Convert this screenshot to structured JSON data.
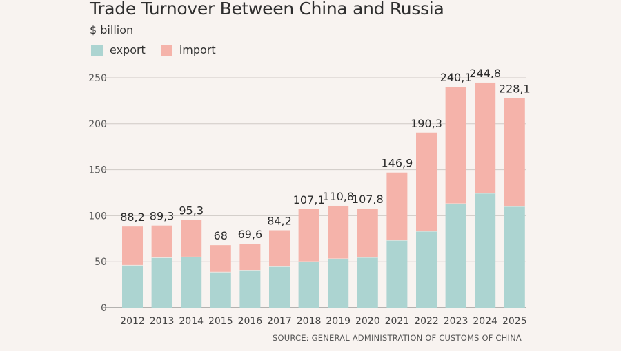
{
  "chart_data": {
    "type": "bar",
    "stacked": true,
    "title": "Trade Turnover Between China and Russia",
    "subtitle": "$ billion",
    "xlabel": "",
    "ylabel": "$ billion",
    "ylim": [
      0,
      250
    ],
    "yticks": [
      0,
      50,
      100,
      150,
      200,
      250
    ],
    "grid": true,
    "legend_position": "top-left",
    "categories": [
      "2012",
      "2013",
      "2014",
      "2015",
      "2016",
      "2017",
      "2018",
      "2019",
      "2020",
      "2021",
      "2022",
      "2023",
      "2024",
      "2025"
    ],
    "totals": [
      88.2,
      89.3,
      95.3,
      68,
      69.6,
      84.2,
      107.1,
      110.8,
      107.8,
      146.9,
      190.3,
      240.1,
      244.8,
      228.1
    ],
    "total_labels": [
      "88,2",
      "89,3",
      "95,3",
      "68",
      "69,6",
      "84,2",
      "107,1",
      "110,8",
      "107,8",
      "146,9",
      "190,3",
      "240,1",
      "244,8",
      "228,1"
    ],
    "series": [
      {
        "name": "export",
        "color": "#acd4d1",
        "values": [
          46.1,
          54.4,
          55.1,
          38.7,
          40.2,
          44.7,
          50.1,
          53.1,
          54.6,
          73.3,
          83.1,
          113.0,
          124.3,
          110.0
        ]
      },
      {
        "name": "import",
        "color": "#f5b3aa",
        "values": [
          42.1,
          34.9,
          40.2,
          29.3,
          29.4,
          39.5,
          57.0,
          57.7,
          53.2,
          73.6,
          107.2,
          127.1,
          120.5,
          118.1
        ]
      }
    ],
    "source": "SOURCE: GENERAL ADMINISTRATION OF CUSTOMS OF CHINA"
  }
}
